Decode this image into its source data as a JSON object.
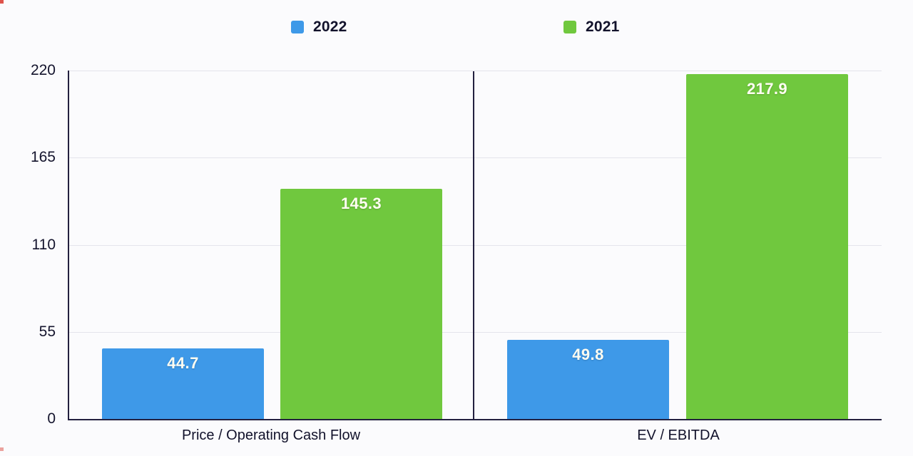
{
  "page": {
    "background": "#fbfbfd"
  },
  "chart_data": {
    "type": "bar",
    "title": "",
    "xlabel": "",
    "ylabel": "",
    "categories": [
      "Price / Operating Cash Flow",
      "EV / EBITDA"
    ],
    "series": [
      {
        "name": "2022",
        "color": "#3E99E8",
        "values": [
          44.7,
          49.8
        ],
        "labels": [
          "44.7",
          "49.8"
        ]
      },
      {
        "name": "2021",
        "color": "#70C83E",
        "values": [
          145.3,
          217.9
        ],
        "labels": [
          "145.3",
          "217.9"
        ]
      }
    ],
    "ylim": [
      0,
      220
    ],
    "yticks": [
      0,
      55,
      110,
      165,
      220
    ],
    "ytick_labels": [
      "0",
      "55",
      "110",
      "165",
      "220"
    ],
    "grid": true,
    "legend_position": "top"
  },
  "colors": {
    "axis": "#23203f",
    "grid": "#e4e4ec",
    "text": "#12122b",
    "value_label": "#fffdf2",
    "corner_artifact": "#d8352b"
  }
}
